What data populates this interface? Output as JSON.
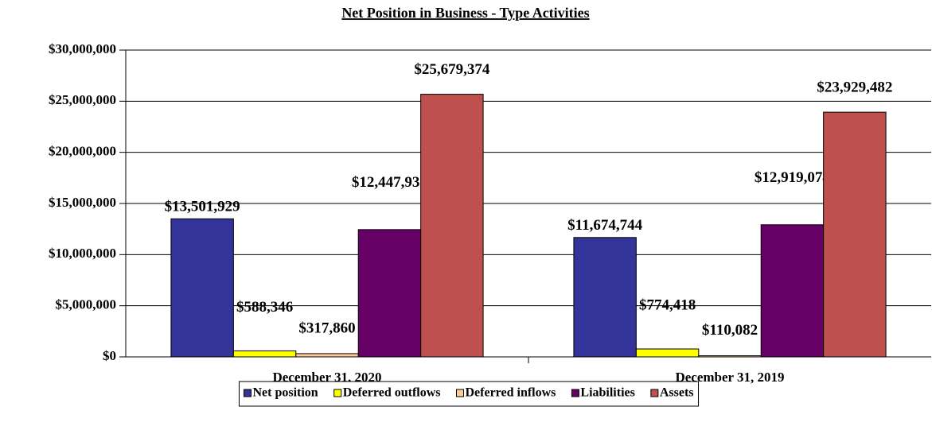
{
  "chart_data": {
    "type": "bar",
    "title": "Net Position in Business - Type Activities",
    "categories": [
      "December 31, 2020",
      "December 31, 2019"
    ],
    "series": [
      {
        "name": "Net position",
        "color": "#333399",
        "values": [
          13501929,
          11674744
        ],
        "value_labels": [
          "$13,501,929",
          "$11,674,744"
        ]
      },
      {
        "name": "Deferred outflows",
        "color": "#ffff00",
        "values": [
          588346,
          774418
        ],
        "value_labels": [
          "$588,346",
          "$774,418"
        ]
      },
      {
        "name": "Deferred inflows",
        "color": "#ffcc99",
        "values": [
          317860,
          110082
        ],
        "value_labels": [
          "$317,860",
          "$110,082"
        ]
      },
      {
        "name": "Liabilities",
        "color": "#660066",
        "values": [
          12447931,
          12919074
        ],
        "value_labels": [
          "$12,447,931",
          "$12,919,074"
        ]
      },
      {
        "name": "Assets",
        "color": "#c0504d",
        "values": [
          25679374,
          23929482
        ],
        "value_labels": [
          "$25,679,374",
          "$23,929,482"
        ]
      }
    ],
    "ylim": [
      0,
      30000000
    ],
    "yticks": [
      {
        "value": 0,
        "label": "$0"
      },
      {
        "value": 5000000,
        "label": "$5,000,000"
      },
      {
        "value": 10000000,
        "label": "$10,000,000"
      },
      {
        "value": 15000000,
        "label": "$15,000,000"
      },
      {
        "value": 20000000,
        "label": "$20,000,000"
      },
      {
        "value": 25000000,
        "label": "$25,000,000"
      },
      {
        "value": 30000000,
        "label": "$30,000,000"
      }
    ],
    "grid": true,
    "legend": "bottom"
  }
}
